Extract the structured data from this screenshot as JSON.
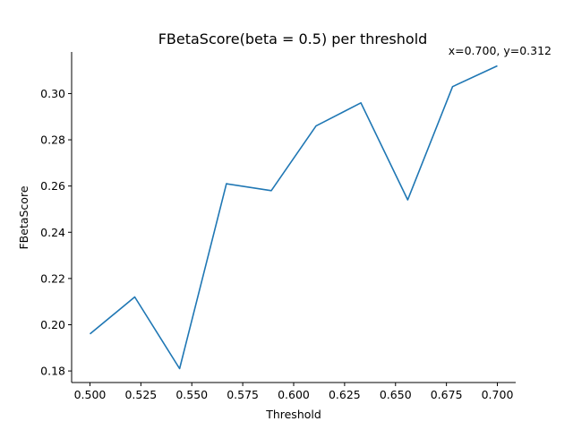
{
  "chart_data": {
    "type": "line",
    "title": "FBetaScore(beta = 0.5) per threshold",
    "xlabel": "Threshold",
    "ylabel": "FBetaScore",
    "xlim": [
      0.491,
      0.709
    ],
    "ylim": [
      0.175,
      0.318
    ],
    "grid": false,
    "x_ticks": [
      "0.500",
      "0.525",
      "0.550",
      "0.575",
      "0.600",
      "0.625",
      "0.650",
      "0.675",
      "0.700"
    ],
    "x_tick_values": [
      0.5,
      0.525,
      0.55,
      0.575,
      0.6,
      0.625,
      0.65,
      0.675,
      0.7
    ],
    "y_ticks": [
      "0.18",
      "0.20",
      "0.22",
      "0.24",
      "0.26",
      "0.28",
      "0.30"
    ],
    "y_tick_values": [
      0.18,
      0.2,
      0.22,
      0.24,
      0.26,
      0.28,
      0.3
    ],
    "series": [
      {
        "color": "#1f77b4",
        "x": [
          0.5,
          0.522,
          0.544,
          0.567,
          0.589,
          0.611,
          0.633,
          0.656,
          0.678,
          0.7
        ],
        "y": [
          0.196,
          0.212,
          0.181,
          0.261,
          0.258,
          0.286,
          0.296,
          0.254,
          0.303,
          0.312
        ]
      }
    ],
    "annotation": "x=0.700, y=0.312"
  }
}
